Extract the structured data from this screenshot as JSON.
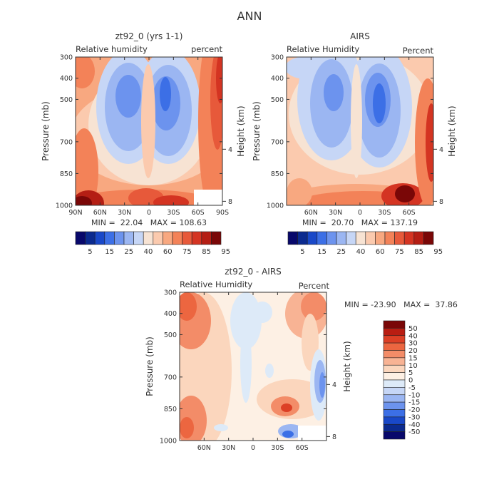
{
  "page_title": "ANN",
  "colors": {
    "rh_scale": [
      "#08086b",
      "#0b2a8f",
      "#1948c8",
      "#3c6fe6",
      "#6c93ee",
      "#9bb6f2",
      "#c6d6f6",
      "#f7e3d3",
      "#fbcaae",
      "#f8a880",
      "#f38258",
      "#e7593a",
      "#d43422",
      "#b41e14",
      "#7a0707"
    ],
    "diff_scale": [
      "#08086b",
      "#0b2a8f",
      "#1948c8",
      "#3c6fe6",
      "#6c93ee",
      "#9bb6f2",
      "#c6d6f6",
      "#ddeaf8",
      "#fdf0e4",
      "#fbd6bd",
      "#f8b394",
      "#f38c68",
      "#ec6640",
      "#dc3f25",
      "#b91d12",
      "#7a0707"
    ]
  },
  "chart_data": [
    {
      "type": "heatmap",
      "title": "zt92_0 (yrs 1-1)",
      "subtitle_left": "Relative humidity",
      "subtitle_right": "percent",
      "ylabel": "Pressure (mb)",
      "ylabel_right": "Height (km)",
      "yticks": [
        "300",
        "400",
        "500",
        "700",
        "850",
        "1000"
      ],
      "xticks": [
        "90N",
        "60N",
        "30N",
        "0",
        "30S",
        "60S",
        "90S"
      ],
      "y2ticks": [
        "8",
        "4"
      ],
      "stats": "MIN =  22.04   MAX = 108.63",
      "colorbar_labels": [
        "5",
        "15",
        "25",
        "40",
        "60",
        "75",
        "85",
        "95"
      ]
    },
    {
      "type": "heatmap",
      "title": "AIRS",
      "subtitle_left": "Relative Humidity",
      "subtitle_right": "Percent",
      "ylabel": "Pressure (mb)",
      "ylabel_right": "Height (km)",
      "yticks": [
        "300",
        "400",
        "500",
        "700",
        "850",
        "1000"
      ],
      "xticks": [
        "60N",
        "30N",
        "0",
        "30S",
        "60S"
      ],
      "y2ticks": [
        "8",
        "4"
      ],
      "stats": "MIN =  20.70   MAX = 137.19",
      "colorbar_labels": [
        "5",
        "15",
        "25",
        "40",
        "60",
        "75",
        "85",
        "95"
      ]
    },
    {
      "type": "heatmap",
      "title": "zt92_0 - AIRS",
      "subtitle_left": "Relative Humidity",
      "subtitle_right": "Percent",
      "ylabel": "Pressure (mb)",
      "ylabel_right": "Height (km)",
      "yticks": [
        "300",
        "400",
        "500",
        "700",
        "850",
        "1000"
      ],
      "xticks": [
        "60N",
        "30N",
        "0",
        "30S",
        "60S"
      ],
      "y2ticks": [
        "8",
        "4"
      ],
      "stats": "MIN = -23.90   MAX =  37.86",
      "colorbar_labels": [
        "50",
        "40",
        "30",
        "20",
        "15",
        "10",
        "5",
        "0",
        "-5",
        "-10",
        "-15",
        "-20",
        "-30",
        "-40",
        "-50"
      ]
    }
  ]
}
